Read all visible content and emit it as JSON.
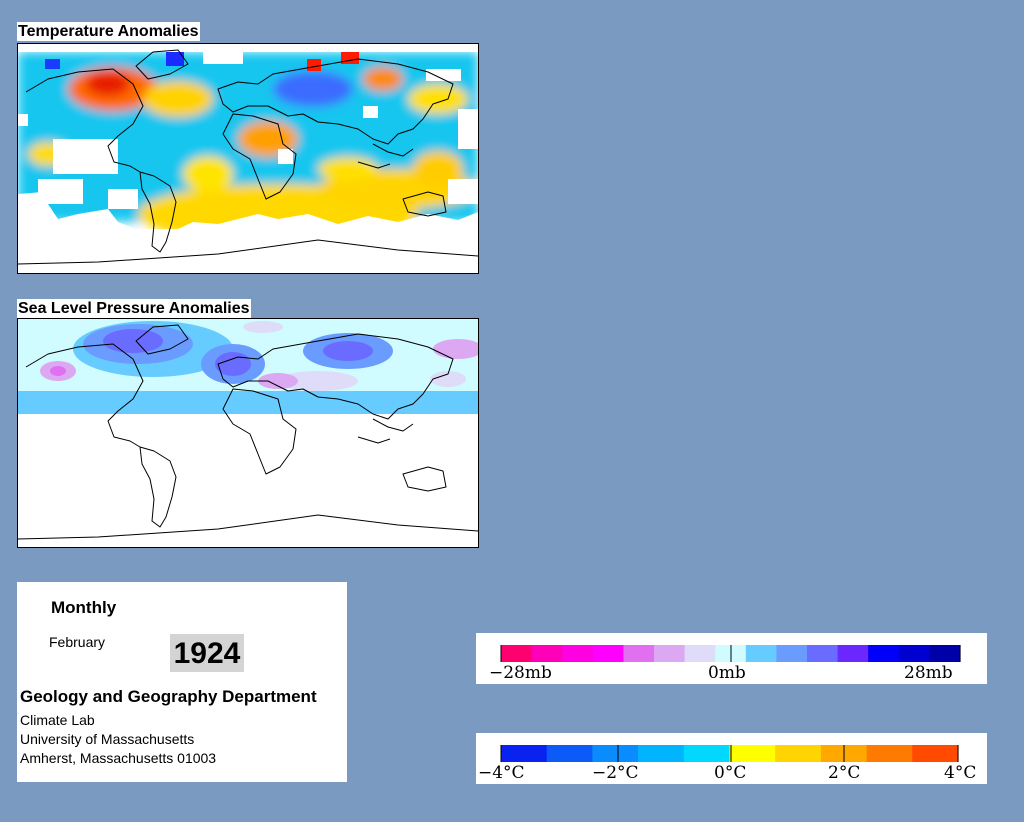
{
  "temperature_map": {
    "title": "Temperature Anomalies"
  },
  "slp_map": {
    "title": "Sea Level Pressure Anomalies"
  },
  "info": {
    "mode": "Monthly",
    "month": "February",
    "year": "1924",
    "department": "Geology and Geography Department",
    "lines": [
      "Climate Lab",
      "University of Massachusetts",
      "Amherst, Massachusetts 01003"
    ]
  },
  "pressure_legend": {
    "colors": [
      "#ff0070",
      "#ff00b8",
      "#ff00e0",
      "#ff00ff",
      "#e070f0",
      "#dca8f2",
      "#dedcf8",
      "#d0fcff",
      "#66ccff",
      "#6a9cff",
      "#6a6cff",
      "#6a28ff",
      "#0000f8",
      "#0000d0",
      "#0000a8"
    ],
    "tick_labels": [
      "−28mb",
      "0mb",
      "28mb"
    ]
  },
  "temperature_legend": {
    "colors": [
      "#0a22f0",
      "#0c5af8",
      "#0a8cff",
      "#00b4ff",
      "#00d8ff",
      "#ffff00",
      "#ffd400",
      "#ffa800",
      "#ff7a00",
      "#ff4a00"
    ],
    "tick_labels": [
      "−4°C",
      "−2°C",
      "0°C",
      "2°C",
      "4°C"
    ]
  }
}
